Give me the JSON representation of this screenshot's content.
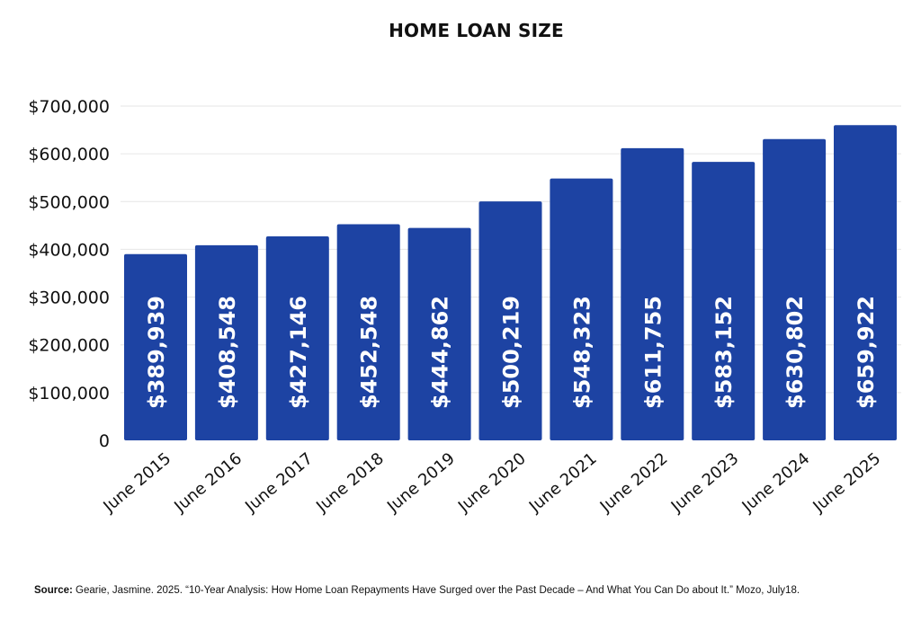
{
  "chart_data": {
    "type": "bar",
    "title": "HOME LOAN SIZE",
    "categories": [
      "June 2015",
      "June 2016",
      "June 2017",
      "June 2018",
      "June 2019",
      "June 2020",
      "June 2021",
      "June 2022",
      "June 2023",
      "June 2024",
      "June 2025"
    ],
    "values": [
      389939,
      408548,
      427146,
      452548,
      444862,
      500219,
      548323,
      611755,
      583152,
      630802,
      659922
    ],
    "data_labels": [
      "$389,939",
      "$408,548",
      "$427,146",
      "$452,548",
      "$444,862",
      "$500,219",
      "$548,323",
      "$611,755",
      "$583,152",
      "$630,802",
      "$659,922"
    ],
    "y_ticks": [
      0,
      100000,
      200000,
      300000,
      400000,
      500000,
      600000,
      700000
    ],
    "y_tick_labels": [
      "0",
      "$100,000",
      "$200,000",
      "$300,000",
      "$400,000",
      "$500,000",
      "$600,000",
      "$700,000"
    ],
    "ylim": [
      0,
      700000
    ],
    "xlabel": "",
    "ylabel": "",
    "grid": true,
    "legend": "none",
    "bar_color": "#1d43a3",
    "gridline_color": "#e6e6e6"
  },
  "source": {
    "label": "Source:",
    "text": " Gearie, Jasmine. 2025. “10-Year Analysis: How Home Loan Repayments Have Surged over the Past Decade – And What You Can Do about It.” Mozo, July18."
  }
}
